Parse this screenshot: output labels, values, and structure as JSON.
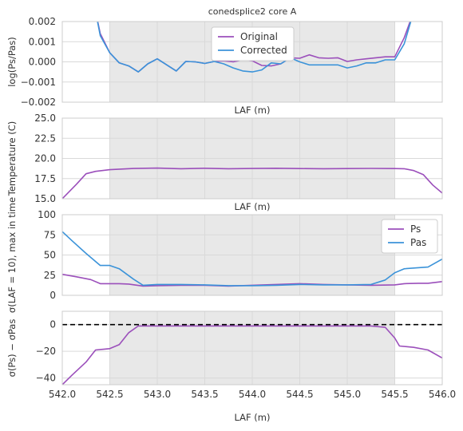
{
  "figure_title": "conedsplice2 core A",
  "colors": {
    "original": "#9b4fbb",
    "corrected": "#3b93d9",
    "shade": "#e8e8e8",
    "grid": "#d9d9d9",
    "zero_line": "#000000"
  },
  "chart_data": [
    {
      "type": "line",
      "title": "conedsplice2 core A",
      "xlabel": "",
      "ylabel": "log(Ps/Pas)",
      "xlim": [
        542.0,
        546.0
      ],
      "ylim": [
        -0.002,
        0.002
      ],
      "yticks": [
        -0.002,
        -0.001,
        0.0,
        0.001,
        0.002
      ],
      "ytick_labels": [
        "−0.002",
        "−0.001",
        "0.000",
        "0.001",
        "0.002"
      ],
      "grid": true,
      "shaded_x": [
        542.5,
        545.5
      ],
      "legend": {
        "position": "top-center",
        "entries": [
          "Original",
          "Corrected"
        ]
      },
      "series": [
        {
          "name": "Original",
          "color": "#9b4fbb",
          "x": [
            542.35,
            542.4,
            542.5,
            542.6,
            542.7,
            542.8,
            542.9,
            543.0,
            543.1,
            543.2,
            543.3,
            543.4,
            543.5,
            543.6,
            543.7,
            543.8,
            543.9,
            544.0,
            544.1,
            544.2,
            544.3,
            544.4,
            544.5,
            544.6,
            544.7,
            544.8,
            544.9,
            545.0,
            545.1,
            545.2,
            545.3,
            545.4,
            545.5,
            545.6,
            545.7,
            545.8
          ],
          "y": [
            0.0025,
            0.0014,
            0.00045,
            -5e-05,
            -0.0002,
            -0.0005,
            -0.0001,
            0.00015,
            -0.00015,
            -0.00045,
            2e-05,
            0.0,
            -8e-05,
            2e-05,
            5e-05,
            0.0,
            0.0001,
            5e-05,
            -0.00018,
            -0.0002,
            -0.0001,
            0.0002,
            0.00018,
            0.00035,
            0.0002,
            0.00018,
            0.0002,
            2e-05,
            0.0001,
            0.00015,
            0.0002,
            0.00025,
            0.00025,
            0.0012,
            0.0025,
            0.003
          ]
        },
        {
          "name": "Corrected",
          "color": "#3b93d9",
          "x": [
            542.35,
            542.4,
            542.5,
            542.6,
            542.7,
            542.8,
            542.9,
            543.0,
            543.1,
            543.2,
            543.3,
            543.4,
            543.5,
            543.6,
            543.7,
            543.8,
            543.9,
            544.0,
            544.1,
            544.2,
            544.3,
            544.4,
            544.5,
            544.6,
            544.7,
            544.8,
            544.9,
            545.0,
            545.1,
            545.2,
            545.3,
            545.4,
            545.5,
            545.6,
            545.7,
            545.8
          ],
          "y": [
            0.0025,
            0.0013,
            0.00045,
            -5e-05,
            -0.0002,
            -0.0005,
            -0.0001,
            0.00015,
            -0.00015,
            -0.00045,
            2e-05,
            0.0,
            -8e-05,
            2e-05,
            -0.0001,
            -0.0003,
            -0.00045,
            -0.0005,
            -0.0004,
            -5e-05,
            -0.0001,
            0.0002,
            0.0,
            -0.00015,
            -0.00015,
            -0.00015,
            -0.00015,
            -0.0003,
            -0.0002,
            -5e-05,
            -5e-05,
            0.0001,
            0.0001,
            0.0009,
            0.0025,
            0.003
          ]
        }
      ]
    },
    {
      "type": "line",
      "xlabel": "LAF (m)",
      "ylabel": "Temperature (C)",
      "xlim": [
        542.0,
        546.0
      ],
      "ylim": [
        15.0,
        25.0
      ],
      "yticks": [
        15.0,
        17.5,
        20.0,
        22.5,
        25.0
      ],
      "ytick_labels": [
        "15.0",
        "17.5",
        "20.0",
        "22.5",
        "25.0"
      ],
      "grid": true,
      "shaded_x": [
        542.5,
        545.5
      ],
      "series": [
        {
          "color": "#9b4fbb",
          "x": [
            542.0,
            542.15,
            542.25,
            542.35,
            542.5,
            542.75,
            543.0,
            543.25,
            543.5,
            543.75,
            544.0,
            544.25,
            544.5,
            544.75,
            545.0,
            545.25,
            545.5,
            545.6,
            545.7,
            545.8,
            545.9,
            546.0
          ],
          "y": [
            15.0,
            16.8,
            18.1,
            18.4,
            18.6,
            18.75,
            18.8,
            18.72,
            18.78,
            18.72,
            18.75,
            18.78,
            18.74,
            18.72,
            18.74,
            18.76,
            18.74,
            18.72,
            18.5,
            18.0,
            16.7,
            15.7
          ]
        }
      ]
    },
    {
      "type": "line",
      "xlabel": "LAF (m)",
      "ylabel": "σ(LAF = 10), max in time",
      "xlim": [
        542.0,
        546.0
      ],
      "ylim": [
        0,
        100
      ],
      "yticks": [
        0,
        25,
        50,
        75,
        100
      ],
      "ytick_labels": [
        "0",
        "25",
        "50",
        "75",
        "100"
      ],
      "grid": true,
      "shaded_x": [
        542.5,
        545.5
      ],
      "legend": {
        "position": "top-right",
        "entries": [
          "Ps",
          "Pas"
        ]
      },
      "series": [
        {
          "name": "Ps",
          "color": "#9b4fbb",
          "x": [
            542.0,
            542.15,
            542.3,
            542.4,
            542.6,
            542.7,
            542.85,
            543.0,
            543.25,
            543.5,
            543.75,
            544.0,
            544.25,
            544.5,
            544.75,
            545.0,
            545.25,
            545.5,
            545.6,
            545.75,
            545.85,
            546.0
          ],
          "y": [
            26,
            23,
            19.5,
            14.5,
            14.5,
            14,
            11.5,
            12,
            12.5,
            12.5,
            11.5,
            12.5,
            13.5,
            14.5,
            13.5,
            13,
            12.5,
            13,
            14.5,
            15,
            15,
            17
          ]
        },
        {
          "name": "Pas",
          "color": "#3b93d9",
          "x": [
            542.0,
            542.1,
            542.25,
            542.4,
            542.5,
            542.6,
            542.75,
            542.85,
            543.0,
            543.25,
            543.5,
            543.75,
            544.0,
            544.25,
            544.5,
            544.75,
            545.0,
            545.25,
            545.4,
            545.5,
            545.6,
            545.85,
            546.0
          ],
          "y": [
            79,
            68,
            52,
            37,
            37,
            33,
            20,
            12.5,
            13.5,
            13.5,
            13,
            12,
            12,
            12.5,
            13.5,
            13,
            13,
            13.5,
            19,
            28,
            33,
            35,
            45
          ]
        }
      ]
    },
    {
      "type": "line",
      "xlabel": "LAF (m)",
      "ylabel": "σ(Ps) − σPas",
      "xlim": [
        542.0,
        546.0
      ],
      "ylim": [
        -45,
        10
      ],
      "yticks": [
        -40,
        -20,
        0
      ],
      "ytick_labels": [
        "−40",
        "−20",
        "0"
      ],
      "xticks": [
        542.0,
        542.5,
        543.0,
        543.5,
        544.0,
        544.5,
        545.0,
        545.5,
        546.0
      ],
      "xtick_labels": [
        "542.0",
        "542.5",
        "543.0",
        "543.5",
        "544.0",
        "544.5",
        "545.0",
        "545.5",
        "546.0"
      ],
      "grid": true,
      "shaded_x": [
        542.5,
        545.5
      ],
      "zero_line": 0,
      "series": [
        {
          "color": "#9b4fbb",
          "x": [
            542.0,
            542.1,
            542.25,
            542.35,
            542.5,
            542.6,
            542.7,
            542.8,
            542.9,
            543.0,
            543.25,
            543.5,
            543.75,
            544.0,
            544.25,
            544.5,
            544.75,
            545.0,
            545.25,
            545.4,
            545.5,
            545.55,
            545.7,
            545.85,
            546.0
          ],
          "y": [
            -45,
            -38,
            -28,
            -19,
            -18,
            -15,
            -6,
            -1,
            -1,
            -1,
            -1,
            -1,
            -1,
            -1,
            -1,
            -1,
            -1,
            -1,
            -1,
            -2,
            -10,
            -16,
            -17,
            -19,
            -25
          ]
        }
      ]
    }
  ]
}
